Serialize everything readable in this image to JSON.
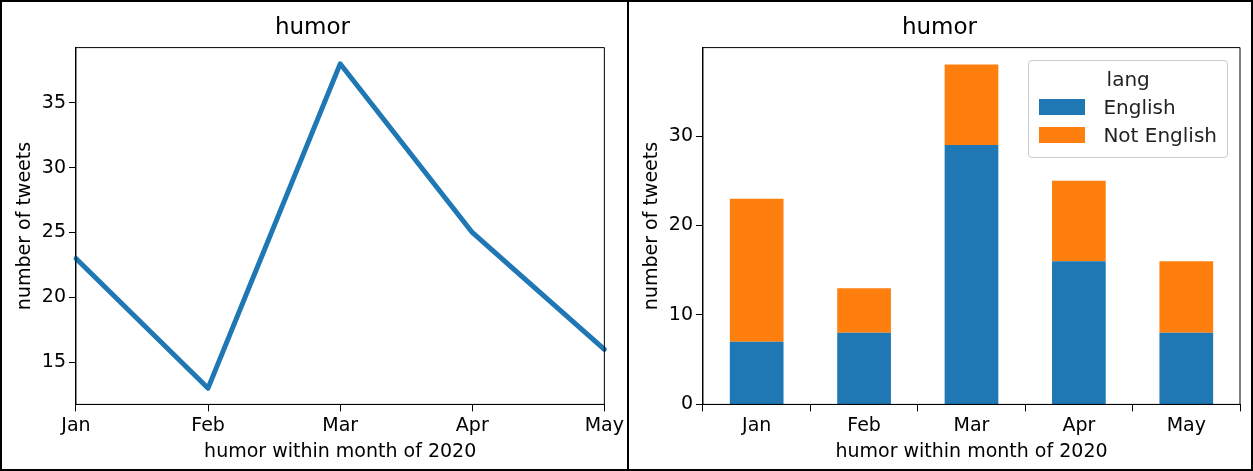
{
  "chart_data": [
    {
      "type": "line",
      "title": "humor",
      "xlabel": "humor within month of 2020",
      "ylabel": "number of tweets",
      "categories": [
        "Jan",
        "Feb",
        "Mar",
        "Apr",
        "May"
      ],
      "series": [
        {
          "color": "#1f77b4",
          "values": [
            23,
            13,
            38,
            25,
            16
          ]
        }
      ],
      "ylim": [
        11.75,
        39.25
      ],
      "yticks": [
        15,
        20,
        25,
        30,
        35
      ],
      "grid": false,
      "legend": false,
      "marker": "none",
      "line_style": "solid"
    },
    {
      "type": "bar",
      "title": "humor",
      "xlabel": "humor within month of 2020",
      "ylabel": "number of tweets",
      "legend_title": "lang",
      "categories": [
        "Jan",
        "Feb",
        "Mar",
        "Apr",
        "May"
      ],
      "stacked": true,
      "series": [
        {
          "name": "English",
          "color": "#1f77b4",
          "values": [
            7,
            8,
            29,
            16,
            8
          ]
        },
        {
          "name": "Not English",
          "color": "#ff7f0e",
          "values": [
            16,
            5,
            9,
            9,
            8
          ]
        }
      ],
      "ylim": [
        0,
        39.9
      ],
      "yticks": [
        0,
        10,
        20,
        30
      ],
      "grid": false,
      "legend": "top right"
    }
  ]
}
